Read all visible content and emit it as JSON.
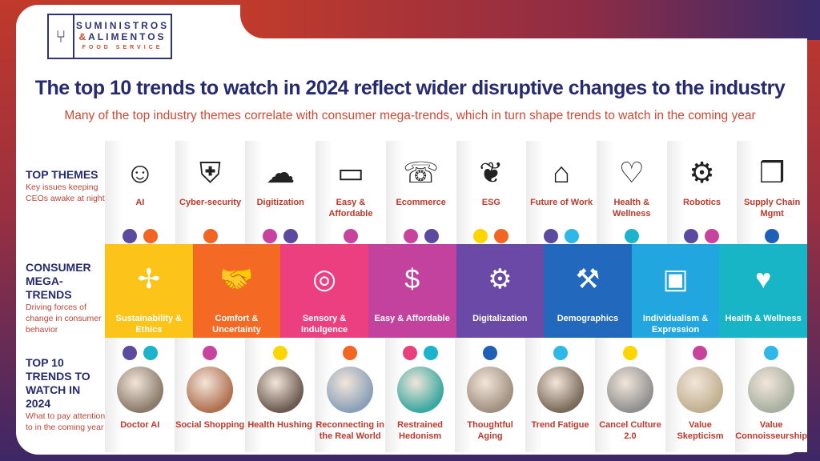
{
  "logo": {
    "line1": "SUMINISTROS",
    "amp": "&",
    "line2": "ALIMENTOS",
    "line3": "FOOD SERVICE"
  },
  "title": "The top 10 trends to watch in 2024 reflect wider disruptive changes to the industry",
  "subtitle": "Many of the top industry themes correlate with consumer mega-trends, which in turn shape trends to watch in the coming year",
  "colors": {
    "purple": "#5b4aa0",
    "orange": "#f26522",
    "magenta": "#c8439e",
    "yellow": "#ffd500",
    "teal": "#1cb3cc",
    "pink": "#e8407a",
    "blue": "#1f5fb5",
    "cyan": "#2eb8e8"
  },
  "top_themes": {
    "title": "TOP THEMES",
    "desc": "Key issues keeping CEOs awake at night",
    "items": [
      {
        "label": "AI",
        "icon": "ai-head-icon",
        "glyph": "☺",
        "dots": [
          "#5b4aa0",
          "#f26522"
        ]
      },
      {
        "label": "Cyber-security",
        "icon": "shield-laptop-icon",
        "glyph": "⛨",
        "dots": [
          "#f26522"
        ]
      },
      {
        "label": "Digitization",
        "icon": "cloud-network-icon",
        "glyph": "☁",
        "dots": [
          "#c8439e",
          "#5b4aa0"
        ]
      },
      {
        "label": "Easy & Affordable",
        "icon": "credit-card-icon",
        "glyph": "▭",
        "dots": [
          "#c8439e"
        ]
      },
      {
        "label": "Ecommerce",
        "icon": "phone-cart-icon",
        "glyph": "☏",
        "dots": [
          "#c8439e",
          "#5b4aa0"
        ]
      },
      {
        "label": "ESG",
        "icon": "hands-plant-icon",
        "glyph": "❦",
        "dots": [
          "#ffd500",
          "#f26522"
        ]
      },
      {
        "label": "Future of Work",
        "icon": "house-briefcase-icon",
        "glyph": "⌂",
        "dots": [
          "#5b4aa0",
          "#2eb8e8"
        ]
      },
      {
        "label": "Health & Wellness",
        "icon": "heart-pulse-icon",
        "glyph": "♡",
        "dots": [
          "#1cb3cc"
        ]
      },
      {
        "label": "Robotics",
        "icon": "robot-icon",
        "glyph": "⚙",
        "dots": [
          "#5b4aa0",
          "#c8439e"
        ]
      },
      {
        "label": "Supply Chain Mgmt",
        "icon": "box-network-icon",
        "glyph": "❒",
        "dots": [
          "#1f5fb5"
        ]
      }
    ]
  },
  "mega_trends": {
    "title": "CONSUMER MEGA-TRENDS",
    "desc": "Driving forces of change in consumer behavior",
    "items": [
      {
        "label": "Sustainability & Ethics",
        "icon": "wind-turbine-icon",
        "glyph": "✢",
        "color": "#fcc419"
      },
      {
        "label": "Comfort & Uncertainty",
        "icon": "handshake-icon",
        "glyph": "🤝",
        "color": "#f46a25"
      },
      {
        "label": "Sensory & Indulgence",
        "icon": "head-target-icon",
        "glyph": "◎",
        "color": "#ec3f80"
      },
      {
        "label": "Easy & Affordable",
        "icon": "coins-icon",
        "glyph": "$",
        "color": "#c2429d"
      },
      {
        "label": "Digitalization",
        "icon": "gear-globe-icon",
        "glyph": "⚙",
        "color": "#6a4aa6"
      },
      {
        "label": "Demographics",
        "icon": "crane-icon",
        "glyph": "⚒",
        "color": "#2268bd"
      },
      {
        "label": "Individualism & Expression",
        "icon": "id-badge-icon",
        "glyph": "▣",
        "color": "#22a6e0"
      },
      {
        "label": "Health & Wellness",
        "icon": "clipboard-heart-icon",
        "glyph": "♥",
        "color": "#17b5c6"
      }
    ]
  },
  "top_trends": {
    "title": "TOP 10 TRENDS TO WATCH IN 2024",
    "desc": "What to pay attention to in the coming year",
    "items": [
      {
        "label": "Doctor AI",
        "dots": [
          "#5b4aa0",
          "#1cb3cc"
        ],
        "photo": "#8a7a6a"
      },
      {
        "label": "Social Shopping",
        "dots": [
          "#c8439e"
        ],
        "photo": "#b07050"
      },
      {
        "label": "Health Hushing",
        "dots": [
          "#ffd500"
        ],
        "photo": "#6b5a50"
      },
      {
        "label": "Reconnecting in the Real World",
        "dots": [
          "#f26522"
        ],
        "photo": "#8aa0b8"
      },
      {
        "label": "Restrained Hedonism",
        "dots": [
          "#e8407a",
          "#1cb3cc"
        ],
        "photo": "#3aa8a0"
      },
      {
        "label": "Thoughtful Aging",
        "dots": [
          "#1f5fb5"
        ],
        "photo": "#a09080"
      },
      {
        "label": "Trend Fatigue",
        "dots": [
          "#2eb8e8"
        ],
        "photo": "#7a6a5a"
      },
      {
        "label": "Cancel Culture 2.0",
        "dots": [
          "#ffd500"
        ],
        "photo": "#909090"
      },
      {
        "label": "Value Skepticism",
        "dots": [
          "#c8439e"
        ],
        "photo": "#c0b090"
      },
      {
        "label": "Value Connoisseurship",
        "dots": [
          "#2eb8e8"
        ],
        "photo": "#a8b0a0"
      }
    ]
  }
}
